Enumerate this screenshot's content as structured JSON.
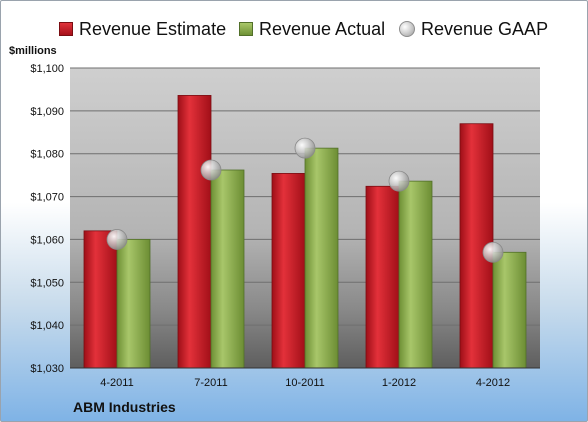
{
  "chart_data": {
    "type": "bar",
    "ylabel": "$millions",
    "categories": [
      "4-2011",
      "7-2011",
      "10-2011",
      "1-2012",
      "4-2012"
    ],
    "ylim": [
      1030,
      1100
    ],
    "yticks": [
      "$1,030",
      "$1,040",
      "$1,050",
      "$1,060",
      "$1,070",
      "$1,080",
      "$1,090",
      "$1,100"
    ],
    "grid": true,
    "legend_position": "top",
    "series": [
      {
        "name": "Revenue Estimate",
        "type": "bar",
        "color": "#c8151e",
        "values": [
          1062,
          1093.6,
          1075.4,
          1072.4,
          1087
        ]
      },
      {
        "name": "Revenue Actual",
        "type": "bar",
        "color": "#8aab4a",
        "values": [
          1060,
          1076.2,
          1081.3,
          1073.6,
          1057
        ]
      },
      {
        "name": "Revenue GAAP",
        "type": "marker",
        "color": "#c0c0c0",
        "values": [
          1060,
          1076.2,
          1081.3,
          1073.6,
          1057
        ]
      }
    ]
  },
  "footer": {
    "company": "ABM Industries"
  }
}
